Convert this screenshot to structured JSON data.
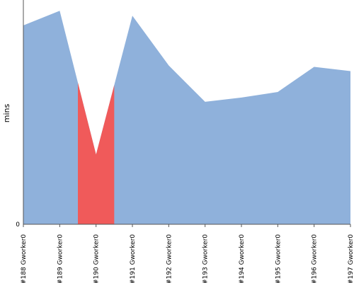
{
  "chart_data": {
    "type": "area",
    "ylabel": "mins",
    "y_tick_labels": [
      "0"
    ],
    "ylim": [
      0,
      1
    ],
    "categories": [
      "#188 Gworker0",
      "#189 Gworker0",
      "#190 Gworker0",
      "#191 Gworker0",
      "#192 Gworker0",
      "#193 Gworker0",
      "#194 Gworker0",
      "#195 Gworker0",
      "#196 Gworker0",
      "#197 Gworker0"
    ],
    "values": [
      0.887,
      0.952,
      0.311,
      0.93,
      0.708,
      0.546,
      0.565,
      0.59,
      0.702,
      0.683
    ],
    "highlight_index": 2,
    "colors": {
      "fill": "#8fb1db",
      "highlight": "#f05a5a",
      "axis": "#555555"
    },
    "grid": false
  }
}
